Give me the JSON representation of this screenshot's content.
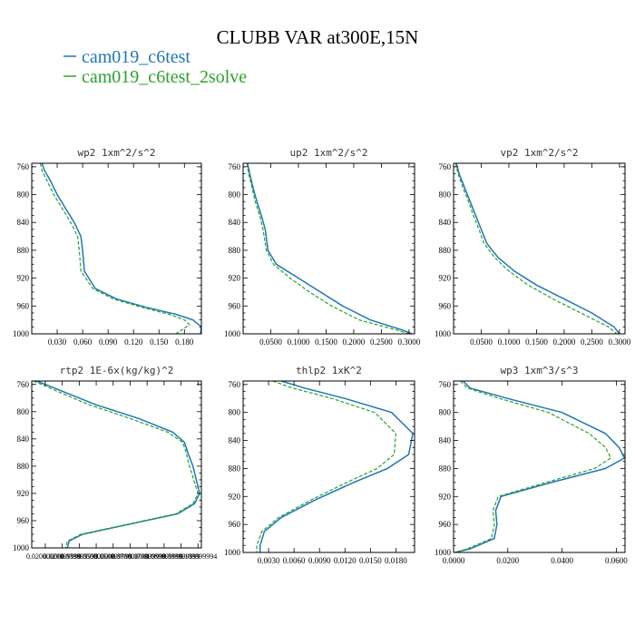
{
  "figure": {
    "title": "CLUBB VAR at300E,15N",
    "legend": [
      {
        "label": "cam019_c6test",
        "color": "#1f77b4"
      },
      {
        "label": "cam019_c6test_2solve",
        "color": "#2ca02c"
      }
    ]
  },
  "chart_data": [
    {
      "type": "line",
      "title": "wp2  1xm^2/s^2",
      "xlim": [
        0,
        0.2
      ],
      "ylim": [
        755,
        1000
      ],
      "y_inverted": true,
      "xticks": [
        0.03,
        0.06,
        0.09,
        0.12,
        0.15,
        0.18
      ],
      "xtick_labels": [
        "0.030",
        "0.060",
        "0.090",
        "0.120",
        "0.150",
        "0.180"
      ],
      "yticks": [
        760,
        800,
        840,
        880,
        920,
        960,
        1000
      ],
      "series": [
        {
          "name": "cam019_c6test",
          "color": "#1f77b4",
          "dash": "",
          "x": [
            0.012,
            0.015,
            0.022,
            0.03,
            0.04,
            0.05,
            0.058,
            0.06,
            0.062,
            0.075,
            0.1,
            0.135,
            0.17,
            0.19,
            0.2,
            0.199
          ],
          "y": [
            755,
            765,
            780,
            800,
            820,
            840,
            860,
            880,
            910,
            935,
            950,
            962,
            972,
            980,
            990,
            1000
          ]
        },
        {
          "name": "cam019_c6test_2solve",
          "color": "#2ca02c",
          "dash": "4,2",
          "x": [
            0.01,
            0.012,
            0.018,
            0.026,
            0.036,
            0.046,
            0.054,
            0.056,
            0.058,
            0.072,
            0.096,
            0.13,
            0.162,
            0.18,
            0.186,
            0.17
          ],
          "y": [
            755,
            765,
            780,
            800,
            820,
            840,
            860,
            880,
            910,
            935,
            950,
            962,
            972,
            980,
            987,
            1000
          ]
        }
      ]
    },
    {
      "type": "line",
      "title": "up2  1xm^2/s^2",
      "xlim": [
        0,
        0.31
      ],
      "ylim": [
        755,
        1000
      ],
      "y_inverted": true,
      "xticks": [
        0.05,
        0.1,
        0.15,
        0.2,
        0.25,
        0.3
      ],
      "xtick_labels": [
        "0.0500",
        "0.1000",
        "0.1500",
        "0.2000",
        "0.2500",
        "0.3000"
      ],
      "yticks": [
        760,
        800,
        840,
        880,
        920,
        960,
        1000
      ],
      "series": [
        {
          "name": "cam019_c6test",
          "color": "#1f77b4",
          "dash": "",
          "x": [
            0.008,
            0.012,
            0.018,
            0.025,
            0.033,
            0.04,
            0.045,
            0.06,
            0.1,
            0.14,
            0.18,
            0.23,
            0.29,
            0.305
          ],
          "y": [
            755,
            770,
            790,
            810,
            830,
            850,
            880,
            900,
            920,
            940,
            960,
            980,
            995,
            1000
          ]
        },
        {
          "name": "cam019_c6test_2solve",
          "color": "#2ca02c",
          "dash": "4,2",
          "x": [
            0.007,
            0.01,
            0.016,
            0.022,
            0.03,
            0.036,
            0.042,
            0.055,
            0.085,
            0.12,
            0.16,
            0.21,
            0.28,
            0.3
          ],
          "y": [
            755,
            770,
            790,
            810,
            830,
            850,
            880,
            900,
            920,
            940,
            960,
            980,
            995,
            1000
          ]
        }
      ]
    },
    {
      "type": "line",
      "title": "vp2  1xm^2/s^2",
      "xlim": [
        0,
        0.31
      ],
      "ylim": [
        755,
        1000
      ],
      "y_inverted": true,
      "xticks": [
        0.05,
        0.1,
        0.15,
        0.2,
        0.25,
        0.3
      ],
      "xtick_labels": [
        "0.0500",
        "0.1000",
        "0.1500",
        "0.2000",
        "0.2500",
        "0.3000"
      ],
      "yticks": [
        760,
        800,
        840,
        880,
        920,
        960,
        1000
      ],
      "series": [
        {
          "name": "cam019_c6test",
          "color": "#1f77b4",
          "dash": "",
          "x": [
            0.005,
            0.01,
            0.02,
            0.03,
            0.04,
            0.05,
            0.06,
            0.08,
            0.11,
            0.15,
            0.2,
            0.25,
            0.29,
            0.3
          ],
          "y": [
            755,
            770,
            790,
            810,
            830,
            850,
            870,
            890,
            910,
            930,
            950,
            970,
            990,
            1000
          ]
        },
        {
          "name": "cam019_c6test_2solve",
          "color": "#2ca02c",
          "dash": "4,2",
          "x": [
            0.004,
            0.008,
            0.017,
            0.027,
            0.036,
            0.046,
            0.055,
            0.074,
            0.1,
            0.135,
            0.18,
            0.23,
            0.28,
            0.295
          ],
          "y": [
            755,
            770,
            790,
            810,
            830,
            850,
            870,
            890,
            910,
            930,
            950,
            970,
            990,
            1000
          ]
        }
      ]
    },
    {
      "type": "line",
      "title": "rtp2  1E-6x(kg/kg)^2",
      "xlim": [
        0.012,
        0.112
      ],
      "ylim": [
        755,
        1000
      ],
      "y_inverted": true,
      "xticks": [
        0.02,
        0.03,
        0.04,
        0.05,
        0.06,
        0.07,
        0.08,
        0.09,
        0.1,
        0.11
      ],
      "xtick_labels": [
        "0.020000000",
        "0.029999999",
        "0.039999999",
        "0.050000000",
        "0.059999999",
        "0.070000000",
        "0.079999999",
        "0.089999999",
        "0.099999999",
        "0.109999994"
      ],
      "yticks": [
        760,
        800,
        840,
        880,
        920,
        960,
        1000
      ],
      "series": [
        {
          "name": "cam019_c6test",
          "color": "#1f77b4",
          "dash": "",
          "x": [
            0.015,
            0.03,
            0.05,
            0.075,
            0.095,
            0.102,
            0.104,
            0.107,
            0.111,
            0.108,
            0.098,
            0.07,
            0.042,
            0.034,
            0.033
          ],
          "y": [
            755,
            770,
            790,
            810,
            830,
            845,
            860,
            880,
            920,
            935,
            950,
            965,
            980,
            990,
            1000
          ]
        },
        {
          "name": "cam019_c6test_2solve",
          "color": "#2ca02c",
          "dash": "4,2",
          "x": [
            0.013,
            0.027,
            0.046,
            0.07,
            0.092,
            0.101,
            0.103,
            0.105,
            0.11,
            0.107,
            0.097,
            0.069,
            0.041,
            0.033,
            0.032
          ],
          "y": [
            755,
            770,
            790,
            810,
            830,
            845,
            860,
            880,
            920,
            935,
            950,
            965,
            980,
            990,
            1000
          ]
        }
      ]
    },
    {
      "type": "line",
      "title": "thlp2  1xK^2",
      "xlim": [
        0,
        0.0202
      ],
      "ylim": [
        755,
        1000
      ],
      "y_inverted": true,
      "xticks": [
        0.003,
        0.006,
        0.009,
        0.012,
        0.015,
        0.018
      ],
      "xtick_labels": [
        "0.0030",
        "0.0060",
        "0.0090",
        "0.0120",
        "0.0150",
        "0.0180"
      ],
      "yticks": [
        760,
        800,
        840,
        880,
        920,
        960,
        1000
      ],
      "series": [
        {
          "name": "cam019_c6test",
          "color": "#1f77b4",
          "dash": "",
          "x": [
            0.0045,
            0.0072,
            0.012,
            0.0175,
            0.02,
            0.0195,
            0.017,
            0.013,
            0.0085,
            0.0045,
            0.0025,
            0.002,
            0.002
          ],
          "y": [
            755,
            765,
            780,
            800,
            830,
            860,
            880,
            900,
            925,
            950,
            970,
            990,
            1000
          ]
        },
        {
          "name": "cam019_c6test_2solve",
          "color": "#2ca02c",
          "dash": "4,2",
          "x": [
            0.0035,
            0.0058,
            0.0105,
            0.0155,
            0.018,
            0.0178,
            0.0158,
            0.0122,
            0.008,
            0.0042,
            0.0022,
            0.0016,
            0.0016
          ],
          "y": [
            755,
            765,
            780,
            800,
            830,
            860,
            880,
            900,
            925,
            950,
            970,
            990,
            1000
          ]
        }
      ]
    },
    {
      "type": "line",
      "title": "wp3  1xm^3/s^3",
      "xlim": [
        0,
        0.0632
      ],
      "ylim": [
        755,
        1000
      ],
      "y_inverted": true,
      "xticks": [
        0.0,
        0.02,
        0.04,
        0.06
      ],
      "xtick_labels": [
        "0.0000",
        "0.0200",
        "0.0400",
        "0.0600"
      ],
      "yticks": [
        760,
        800,
        840,
        880,
        920,
        960,
        1000
      ],
      "series": [
        {
          "name": "cam019_c6test",
          "color": "#1f77b4",
          "dash": "",
          "x": [
            0.0035,
            0.006,
            0.02,
            0.04,
            0.056,
            0.061,
            0.063,
            0.056,
            0.036,
            0.0175,
            0.0155,
            0.016,
            0.015,
            0.006,
            0.0005
          ],
          "y": [
            755,
            765,
            780,
            800,
            830,
            850,
            865,
            880,
            900,
            920,
            940,
            960,
            980,
            995,
            1000
          ]
        },
        {
          "name": "cam019_c6test_2solve",
          "color": "#2ca02c",
          "dash": "4,2",
          "x": [
            0.0025,
            0.005,
            0.017,
            0.035,
            0.05,
            0.056,
            0.058,
            0.052,
            0.034,
            0.0165,
            0.0145,
            0.015,
            0.014,
            0.005,
            0.0003
          ],
          "y": [
            755,
            765,
            780,
            800,
            830,
            850,
            865,
            880,
            900,
            920,
            940,
            960,
            980,
            995,
            1000
          ]
        }
      ]
    }
  ]
}
